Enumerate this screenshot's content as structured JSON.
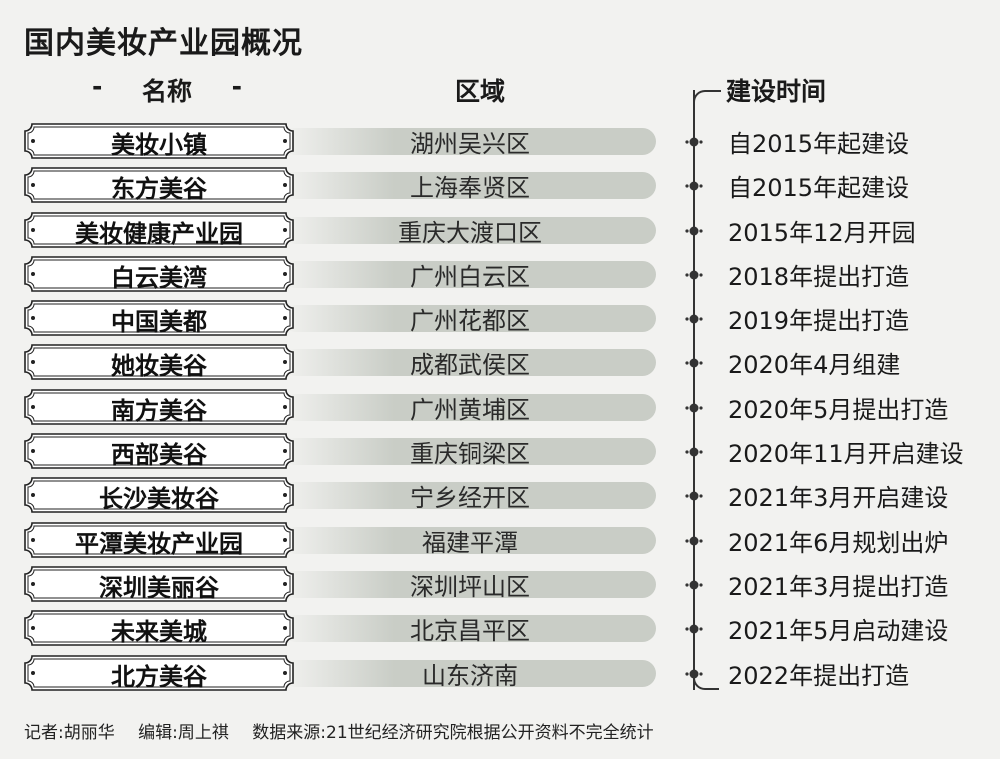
{
  "title": "国内美妆产业园概况",
  "headers": {
    "name_dash_left": "-",
    "name": "名称",
    "name_dash_right": "-",
    "region": "区域",
    "time": "建设时间"
  },
  "rows": [
    {
      "name": "美妆小镇",
      "region": "湖州吴兴区",
      "time": "自2015年起建设"
    },
    {
      "name": "东方美谷",
      "region": "上海奉贤区",
      "time": "自2015年起建设"
    },
    {
      "name": "美妆健康产业园",
      "region": "重庆大渡口区",
      "time": "2015年12月开园"
    },
    {
      "name": "白云美湾",
      "region": "广州白云区",
      "time": "2018年提出打造"
    },
    {
      "name": "中国美都",
      "region": "广州花都区",
      "time": "2019年提出打造"
    },
    {
      "name": "她妆美谷",
      "region": "成都武侯区",
      "time": "2020年4月组建"
    },
    {
      "name": "南方美谷",
      "region": "广州黄埔区",
      "time": "2020年5月提出打造"
    },
    {
      "name": "西部美谷",
      "region": "重庆铜梁区",
      "time": "2020年11月开启建设"
    },
    {
      "name": "长沙美妆谷",
      "region": "宁乡经开区",
      "time": "2021年3月开启建设"
    },
    {
      "name": "平潭美妆产业园",
      "region": "福建平潭",
      "time": "2021年6月规划出炉"
    },
    {
      "name": "深圳美丽谷",
      "region": "深圳坪山区",
      "time": "2021年3月提出打造"
    },
    {
      "name": "未来美城",
      "region": "北京昌平区",
      "time": "2021年5月启动建设"
    },
    {
      "name": "北方美谷",
      "region": "山东济南",
      "time": "2022年提出打造"
    }
  ],
  "footer": {
    "reporter": "记者:胡丽华",
    "editor": "编辑:周上祺",
    "source": "数据来源:21世纪经济研究院根据公开资料不完全统计"
  }
}
